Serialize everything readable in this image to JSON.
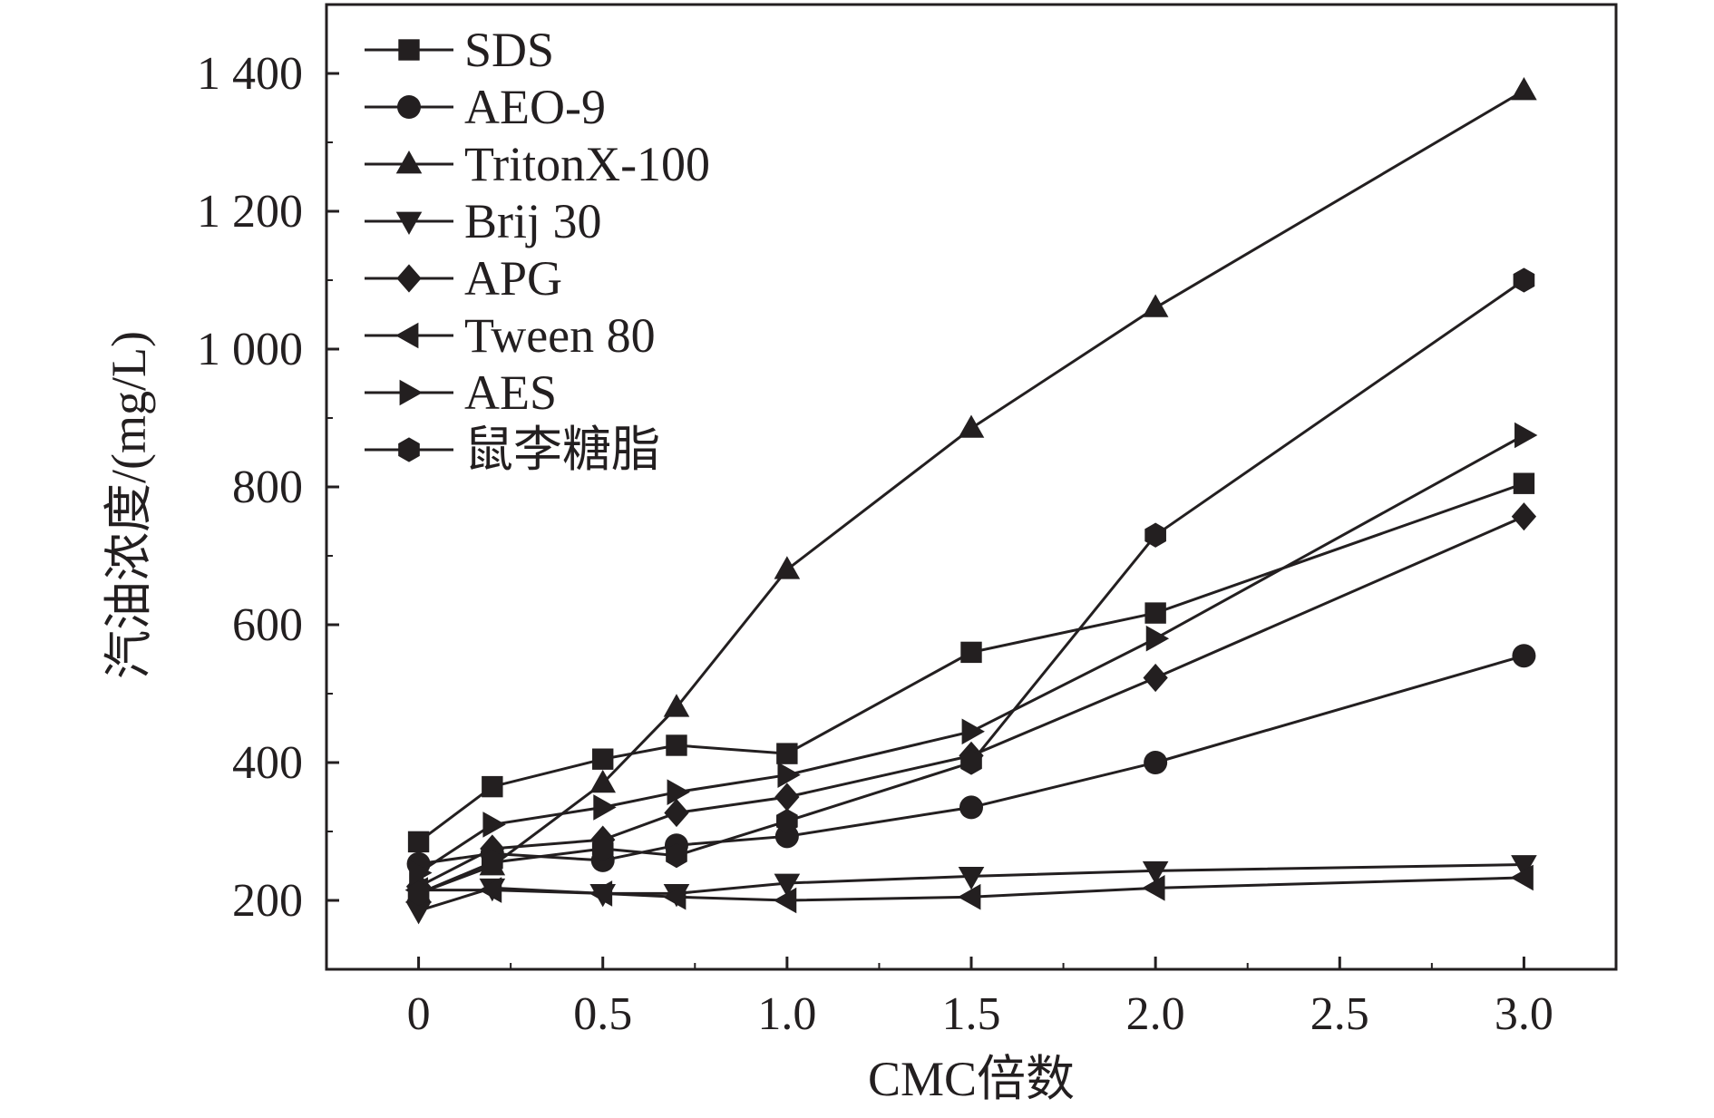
{
  "chart_data": {
    "type": "line",
    "title": "",
    "xlabel": "CMC倍数",
    "ylabel": "汽油浓度/(mg/L)",
    "xlim": [
      -0.25,
      3.25
    ],
    "ylim": [
      100,
      1500
    ],
    "xticks": [
      0,
      0.5,
      1.0,
      1.5,
      2.0,
      2.5,
      3.0
    ],
    "xtick_labels": [
      "0",
      "0.5",
      "1.0",
      "1.5",
      "2.0",
      "2.5",
      "3.0"
    ],
    "yticks": [
      200,
      400,
      600,
      800,
      1000,
      1200,
      1400
    ],
    "ytick_labels": [
      "200",
      "400",
      "600",
      "800",
      "1 000",
      "1 200",
      "1 400"
    ],
    "grid": false,
    "legend_position": "top-left",
    "x": [
      0,
      0.2,
      0.5,
      0.7,
      1.0,
      1.5,
      2.0,
      3.0
    ],
    "series": [
      {
        "name": "SDS",
        "marker": "square",
        "values": [
          285,
          365,
          405,
          425,
          413,
          560,
          617,
          805
        ]
      },
      {
        "name": "AEO-9",
        "marker": "circle",
        "values": [
          253,
          268,
          258,
          280,
          293,
          335,
          400,
          555
        ]
      },
      {
        "name": "TritonX-100",
        "marker": "triangle-up",
        "values": [
          210,
          250,
          370,
          480,
          680,
          885,
          1060,
          1375
        ]
      },
      {
        "name": "Brij 30",
        "marker": "triangle-down",
        "values": [
          185,
          218,
          210,
          210,
          225,
          235,
          243,
          252
        ]
      },
      {
        "name": "APG",
        "marker": "diamond",
        "values": [
          220,
          275,
          288,
          327,
          350,
          410,
          523,
          757
        ]
      },
      {
        "name": "Tween 80",
        "marker": "triangle-left",
        "values": [
          215,
          215,
          210,
          205,
          200,
          205,
          218,
          233
        ]
      },
      {
        "name": "AES",
        "marker": "triangle-right",
        "values": [
          240,
          310,
          335,
          357,
          382,
          445,
          580,
          875
        ]
      },
      {
        "name": "鼠李糖脂",
        "marker": "hexagon",
        "values": [
          210,
          255,
          275,
          265,
          315,
          400,
          730,
          1100
        ]
      }
    ],
    "colors": {
      "line": "#231f20",
      "marker": "#231f20",
      "axis": "#231f20",
      "background": "#ffffff"
    }
  }
}
